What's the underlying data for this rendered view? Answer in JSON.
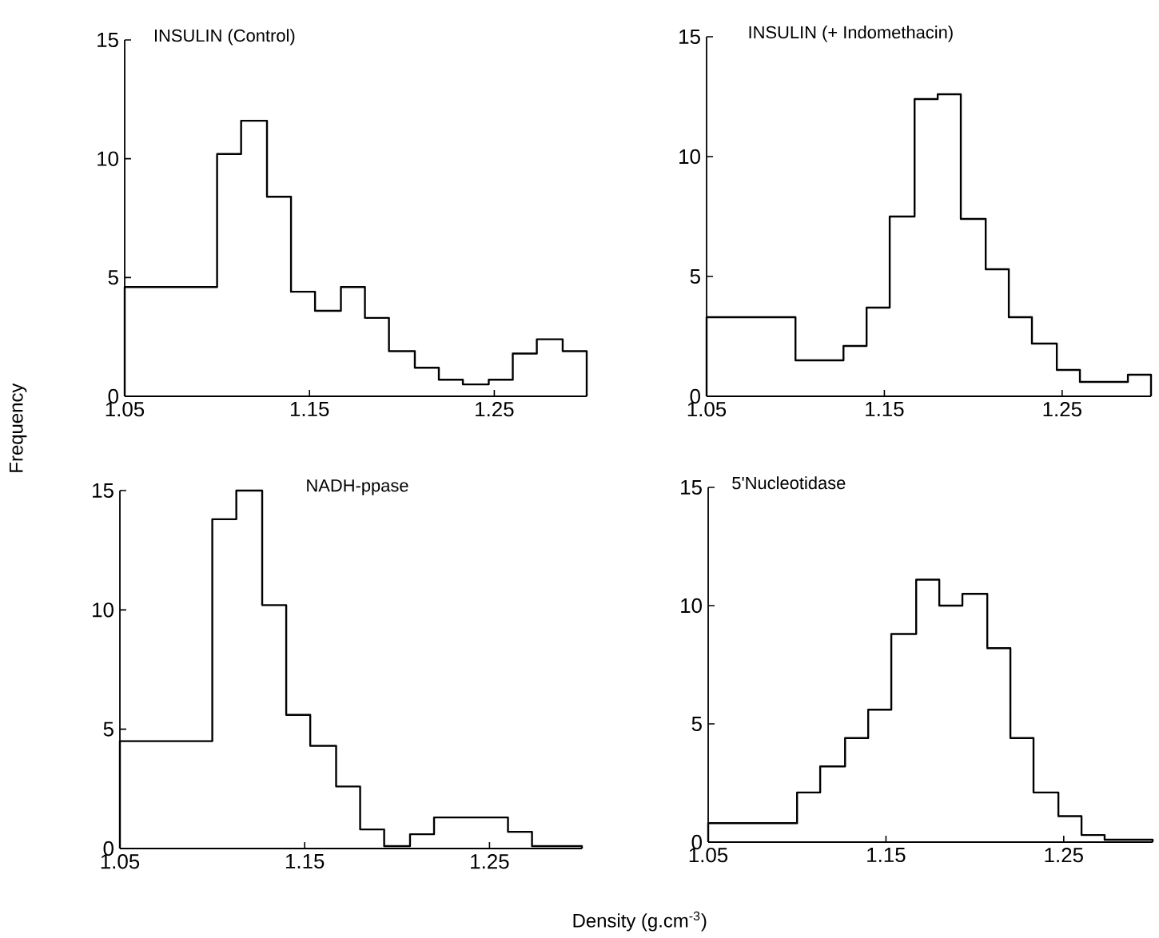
{
  "chart_data": [
    {
      "type": "histogram",
      "title": "INSULIN (Control)",
      "ylabel": "Frequency",
      "color": "#000000",
      "bins": [
        1.05,
        1.1,
        1.113,
        1.127,
        1.14,
        1.153,
        1.167,
        1.18,
        1.193,
        1.207,
        1.22,
        1.233,
        1.247,
        1.26,
        1.273,
        1.287,
        1.3
      ],
      "values": [
        4.6,
        10.2,
        11.6,
        8.4,
        4.4,
        3.6,
        4.6,
        3.3,
        1.9,
        1.2,
        0.7,
        0.5,
        0.7,
        1.8,
        2.4,
        1.9
      ],
      "xlim": [
        1.05,
        1.3
      ],
      "ylim": [
        0,
        15
      ],
      "xticks": [
        1.05,
        1.15,
        1.25
      ],
      "yticks": [
        0,
        5,
        10,
        15
      ]
    },
    {
      "type": "histogram",
      "title": "INSULIN (+ Indomethacin)",
      "color": "#000000",
      "bins": [
        1.05,
        1.1,
        1.113,
        1.127,
        1.14,
        1.153,
        1.167,
        1.18,
        1.193,
        1.207,
        1.22,
        1.233,
        1.247,
        1.26,
        1.273,
        1.287,
        1.3
      ],
      "values": [
        3.3,
        1.5,
        1.5,
        2.1,
        3.7,
        7.5,
        12.4,
        12.6,
        7.4,
        5.3,
        3.3,
        2.2,
        1.1,
        0.6,
        0.6,
        0.9
      ],
      "xlim": [
        1.05,
        1.3
      ],
      "ylim": [
        0,
        15
      ],
      "xticks": [
        1.05,
        1.15,
        1.25
      ],
      "yticks": [
        0,
        5,
        10,
        15
      ]
    },
    {
      "type": "histogram",
      "title": "NADH-ppase",
      "xlabel": "Density (g.cm$^{-3}$)",
      "color": "#000000",
      "bins": [
        1.05,
        1.1,
        1.113,
        1.127,
        1.14,
        1.153,
        1.167,
        1.18,
        1.193,
        1.207,
        1.22,
        1.233,
        1.247,
        1.26,
        1.273,
        1.287,
        1.3
      ],
      "values": [
        4.5,
        13.8,
        15.0,
        10.2,
        5.6,
        4.3,
        2.6,
        0.8,
        0.1,
        0.6,
        1.3,
        1.3,
        1.3,
        0.7,
        0.1,
        0.1
      ],
      "xlim": [
        1.05,
        1.3
      ],
      "ylim": [
        0,
        15
      ],
      "xticks": [
        1.05,
        1.15,
        1.25
      ],
      "yticks": [
        0,
        5,
        10,
        15
      ]
    },
    {
      "type": "histogram",
      "title": "5'Nucleotidase",
      "color": "#000000",
      "bins": [
        1.05,
        1.1,
        1.113,
        1.127,
        1.14,
        1.153,
        1.167,
        1.18,
        1.193,
        1.207,
        1.22,
        1.233,
        1.247,
        1.26,
        1.273,
        1.287,
        1.3
      ],
      "values": [
        0.8,
        2.1,
        3.2,
        4.4,
        5.6,
        8.8,
        11.1,
        10.0,
        10.5,
        8.2,
        4.4,
        2.1,
        1.1,
        0.3,
        0.1,
        0.1
      ],
      "xlim": [
        1.05,
        1.3
      ],
      "ylim": [
        0,
        15
      ],
      "xticks": [
        1.05,
        1.15,
        1.25
      ],
      "yticks": [
        0,
        5,
        10,
        15
      ]
    }
  ]
}
